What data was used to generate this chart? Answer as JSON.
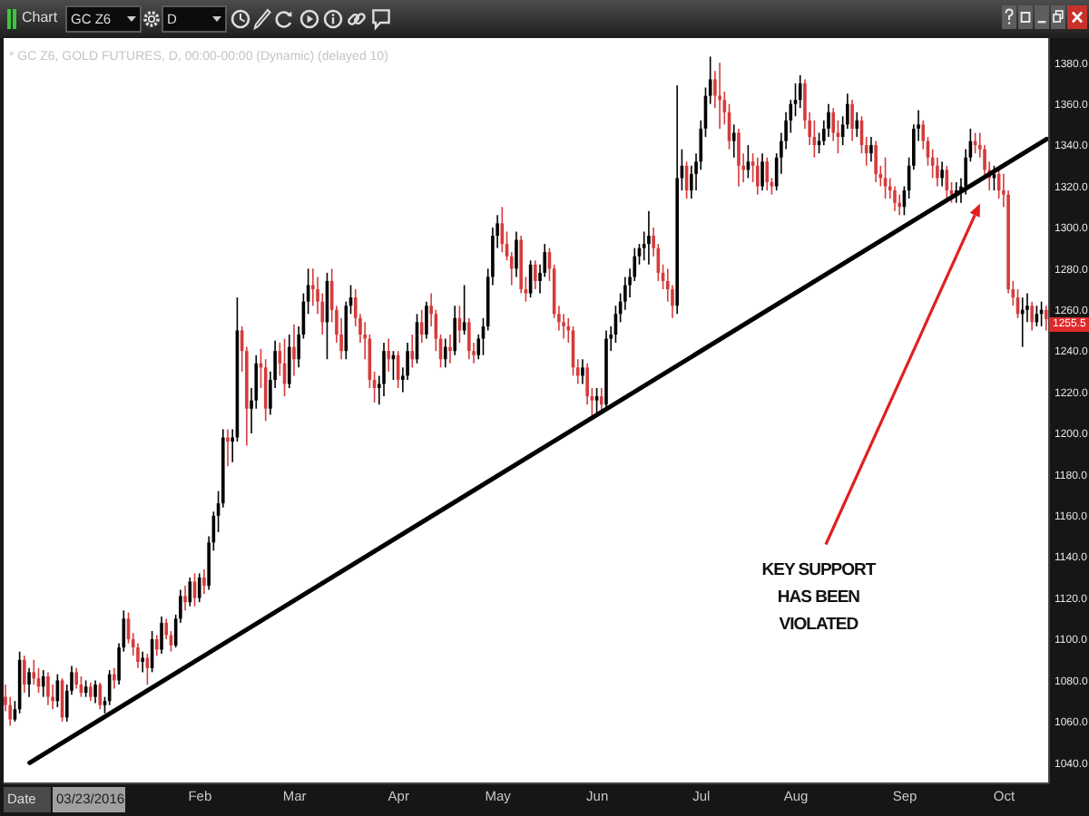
{
  "chart_data": {
    "type": "candlestick",
    "title": "* GC Z6, GOLD FUTURES, D, 00:00-00:00 (Dynamic) (delayed 10)",
    "categories": [
      null,
      null,
      null,
      null,
      null,
      null,
      null,
      null,
      null,
      null,
      null,
      null,
      null,
      null,
      null,
      null,
      null,
      null,
      null,
      null,
      null,
      null,
      null,
      null,
      null,
      null,
      null,
      null,
      null,
      null,
      null,
      null,
      null,
      null,
      null,
      null,
      null,
      null,
      null,
      null,
      null,
      "Feb",
      null,
      null,
      null,
      null,
      null,
      null,
      null,
      null,
      null,
      null,
      null,
      null,
      null,
      null,
      null,
      null,
      null,
      null,
      null,
      "Mar",
      null,
      null,
      null,
      null,
      null,
      null,
      null,
      null,
      null,
      null,
      null,
      null,
      null,
      null,
      null,
      null,
      null,
      null,
      null,
      null,
      null,
      "Apr",
      null,
      null,
      null,
      null,
      null,
      null,
      null,
      null,
      null,
      null,
      null,
      null,
      null,
      null,
      null,
      null,
      null,
      null,
      null,
      null,
      "May",
      null,
      null,
      null,
      null,
      null,
      null,
      null,
      null,
      null,
      null,
      null,
      null,
      null,
      null,
      null,
      null,
      null,
      null,
      null,
      null,
      "Jun",
      null,
      null,
      null,
      null,
      null,
      null,
      null,
      null,
      null,
      null,
      null,
      null,
      null,
      null,
      null,
      null,
      null,
      null,
      null,
      null,
      null,
      "Jul",
      null,
      null,
      null,
      null,
      null,
      null,
      null,
      null,
      null,
      null,
      null,
      null,
      null,
      null,
      null,
      null,
      null,
      null,
      null,
      "Aug",
      null,
      null,
      null,
      null,
      null,
      null,
      null,
      null,
      null,
      null,
      null,
      null,
      null,
      null,
      null,
      null,
      null,
      null,
      null,
      null,
      null,
      null,
      "Sep",
      null,
      null,
      null,
      null,
      null,
      null,
      null,
      null,
      null,
      null,
      null,
      null,
      null,
      null,
      null,
      null,
      null,
      null,
      null,
      null,
      "Oct",
      null,
      null,
      null,
      null,
      null,
      null,
      null,
      null,
      null
    ],
    "ohlc": [
      [
        1072,
        1078,
        1065,
        1068
      ],
      [
        1068,
        1072,
        1058,
        1061
      ],
      [
        1061,
        1070,
        1060,
        1066
      ],
      [
        1066,
        1094,
        1064,
        1090
      ],
      [
        1090,
        1092,
        1074,
        1078
      ],
      [
        1078,
        1086,
        1072,
        1084
      ],
      [
        1084,
        1090,
        1078,
        1081
      ],
      [
        1081,
        1086,
        1074,
        1077
      ],
      [
        1077,
        1085,
        1072,
        1082
      ],
      [
        1082,
        1084,
        1068,
        1072
      ],
      [
        1072,
        1078,
        1066,
        1070
      ],
      [
        1070,
        1083,
        1067,
        1080
      ],
      [
        1080,
        1081,
        1060,
        1062
      ],
      [
        1062,
        1078,
        1060,
        1075
      ],
      [
        1075,
        1087,
        1073,
        1084
      ],
      [
        1084,
        1086,
        1076,
        1078
      ],
      [
        1078,
        1082,
        1072,
        1074
      ],
      [
        1074,
        1080,
        1072,
        1077
      ],
      [
        1077,
        1079,
        1070,
        1072
      ],
      [
        1072,
        1080,
        1069,
        1078
      ],
      [
        1078,
        1079,
        1066,
        1068
      ],
      [
        1068,
        1072,
        1064,
        1070
      ],
      [
        1070,
        1085,
        1068,
        1083
      ],
      [
        1083,
        1086,
        1076,
        1080
      ],
      [
        1080,
        1098,
        1078,
        1096
      ],
      [
        1096,
        1114,
        1094,
        1110
      ],
      [
        1110,
        1113,
        1098,
        1100
      ],
      [
        1100,
        1103,
        1092,
        1096
      ],
      [
        1096,
        1098,
        1086,
        1089
      ],
      [
        1089,
        1094,
        1084,
        1091
      ],
      [
        1091,
        1093,
        1078,
        1086
      ],
      [
        1086,
        1104,
        1084,
        1100
      ],
      [
        1100,
        1102,
        1092,
        1095
      ],
      [
        1095,
        1111,
        1093,
        1108
      ],
      [
        1108,
        1110,
        1100,
        1102
      ],
      [
        1102,
        1104,
        1094,
        1097
      ],
      [
        1097,
        1112,
        1096,
        1110
      ],
      [
        1110,
        1124,
        1108,
        1121
      ],
      [
        1121,
        1126,
        1114,
        1118
      ],
      [
        1118,
        1130,
        1116,
        1128
      ],
      [
        1128,
        1132,
        1116,
        1120
      ],
      [
        1120,
        1132,
        1118,
        1130
      ],
      [
        1130,
        1134,
        1122,
        1126
      ],
      [
        1126,
        1150,
        1124,
        1147
      ],
      [
        1147,
        1162,
        1143,
        1160
      ],
      [
        1160,
        1172,
        1152,
        1166
      ],
      [
        1166,
        1202,
        1164,
        1198
      ],
      [
        1198,
        1202,
        1184,
        1196
      ],
      [
        1196,
        1202,
        1186,
        1198
      ],
      [
        1198,
        1266,
        1196,
        1250
      ],
      [
        1250,
        1252,
        1230,
        1240
      ],
      [
        1240,
        1242,
        1194,
        1212
      ],
      [
        1212,
        1222,
        1200,
        1216
      ],
      [
        1216,
        1238,
        1212,
        1234
      ],
      [
        1234,
        1241,
        1222,
        1232
      ],
      [
        1232,
        1236,
        1206,
        1212
      ],
      [
        1212,
        1230,
        1209,
        1226
      ],
      [
        1226,
        1245,
        1222,
        1240
      ],
      [
        1240,
        1244,
        1228,
        1234
      ],
      [
        1234,
        1246,
        1218,
        1224
      ],
      [
        1224,
        1248,
        1222,
        1242
      ],
      [
        1242,
        1253,
        1228,
        1236
      ],
      [
        1236,
        1252,
        1232,
        1248
      ],
      [
        1248,
        1268,
        1246,
        1264
      ],
      [
        1264,
        1280,
        1258,
        1272
      ],
      [
        1272,
        1280,
        1262,
        1270
      ],
      [
        1270,
        1276,
        1258,
        1264
      ],
      [
        1264,
        1268,
        1248,
        1254
      ],
      [
        1254,
        1278,
        1236,
        1274
      ],
      [
        1274,
        1280,
        1254,
        1260
      ],
      [
        1260,
        1262,
        1244,
        1248
      ],
      [
        1248,
        1256,
        1236,
        1240
      ],
      [
        1240,
        1264,
        1236,
        1262
      ],
      [
        1262,
        1272,
        1258,
        1266
      ],
      [
        1266,
        1270,
        1252,
        1256
      ],
      [
        1256,
        1258,
        1244,
        1248
      ],
      [
        1248,
        1254,
        1236,
        1246
      ],
      [
        1246,
        1248,
        1222,
        1226
      ],
      [
        1226,
        1230,
        1215,
        1222
      ],
      [
        1222,
        1228,
        1214,
        1224
      ],
      [
        1224,
        1244,
        1218,
        1240
      ],
      [
        1240,
        1246,
        1230,
        1236
      ],
      [
        1236,
        1240,
        1226,
        1238
      ],
      [
        1238,
        1240,
        1222,
        1226
      ],
      [
        1226,
        1232,
        1220,
        1228
      ],
      [
        1228,
        1244,
        1226,
        1240
      ],
      [
        1240,
        1248,
        1232,
        1236
      ],
      [
        1236,
        1258,
        1234,
        1254
      ],
      [
        1254,
        1260,
        1244,
        1248
      ],
      [
        1248,
        1264,
        1246,
        1262
      ],
      [
        1262,
        1268,
        1252,
        1258
      ],
      [
        1258,
        1260,
        1240,
        1246
      ],
      [
        1246,
        1248,
        1232,
        1236
      ],
      [
        1236,
        1246,
        1232,
        1242
      ],
      [
        1242,
        1248,
        1234,
        1240
      ],
      [
        1240,
        1262,
        1238,
        1256
      ],
      [
        1256,
        1262,
        1244,
        1250
      ],
      [
        1250,
        1272,
        1248,
        1254
      ],
      [
        1254,
        1256,
        1236,
        1240
      ],
      [
        1240,
        1244,
        1234,
        1238
      ],
      [
        1238,
        1248,
        1236,
        1246
      ],
      [
        1246,
        1256,
        1238,
        1252
      ],
      [
        1252,
        1280,
        1250,
        1276
      ],
      [
        1276,
        1300,
        1272,
        1296
      ],
      [
        1296,
        1306,
        1290,
        1302
      ],
      [
        1302,
        1310,
        1288,
        1292
      ],
      [
        1292,
        1298,
        1284,
        1286
      ],
      [
        1286,
        1288,
        1272,
        1280
      ],
      [
        1280,
        1298,
        1276,
        1294
      ],
      [
        1294,
        1296,
        1268,
        1270
      ],
      [
        1270,
        1276,
        1264,
        1268
      ],
      [
        1268,
        1284,
        1266,
        1282
      ],
      [
        1282,
        1284,
        1270,
        1274
      ],
      [
        1274,
        1282,
        1268,
        1278
      ],
      [
        1278,
        1292,
        1276,
        1288
      ],
      [
        1288,
        1290,
        1274,
        1280
      ],
      [
        1280,
        1282,
        1256,
        1258
      ],
      [
        1258,
        1262,
        1250,
        1254
      ],
      [
        1254,
        1258,
        1246,
        1252
      ],
      [
        1252,
        1256,
        1244,
        1250
      ],
      [
        1250,
        1252,
        1228,
        1232
      ],
      [
        1232,
        1236,
        1224,
        1228
      ],
      [
        1228,
        1236,
        1224,
        1232
      ],
      [
        1232,
        1234,
        1214,
        1218
      ],
      [
        1218,
        1222,
        1208,
        1216
      ],
      [
        1216,
        1222,
        1210,
        1218
      ],
      [
        1218,
        1222,
        1210,
        1214
      ],
      [
        1214,
        1250,
        1212,
        1246
      ],
      [
        1246,
        1252,
        1240,
        1248
      ],
      [
        1248,
        1262,
        1244,
        1258
      ],
      [
        1258,
        1268,
        1254,
        1264
      ],
      [
        1264,
        1276,
        1260,
        1272
      ],
      [
        1272,
        1280,
        1266,
        1276
      ],
      [
        1276,
        1290,
        1274,
        1286
      ],
      [
        1286,
        1292,
        1282,
        1290
      ],
      [
        1290,
        1298,
        1284,
        1292
      ],
      [
        1292,
        1308,
        1282,
        1296
      ],
      [
        1296,
        1300,
        1286,
        1290
      ],
      [
        1290,
        1292,
        1274,
        1278
      ],
      [
        1278,
        1282,
        1270,
        1274
      ],
      [
        1274,
        1280,
        1264,
        1270
      ],
      [
        1270,
        1272,
        1256,
        1262
      ],
      [
        1262,
        1369,
        1258,
        1324
      ],
      [
        1324,
        1338,
        1318,
        1330
      ],
      [
        1330,
        1332,
        1314,
        1318
      ],
      [
        1318,
        1330,
        1314,
        1326
      ],
      [
        1326,
        1336,
        1318,
        1332
      ],
      [
        1332,
        1352,
        1328,
        1348
      ],
      [
        1348,
        1368,
        1344,
        1364
      ],
      [
        1364,
        1383,
        1360,
        1372
      ],
      [
        1372,
        1376,
        1358,
        1364
      ],
      [
        1364,
        1380,
        1348,
        1362
      ],
      [
        1362,
        1366,
        1350,
        1356
      ],
      [
        1356,
        1360,
        1338,
        1342
      ],
      [
        1342,
        1350,
        1334,
        1346
      ],
      [
        1346,
        1348,
        1320,
        1330
      ],
      [
        1330,
        1336,
        1322,
        1328
      ],
      [
        1328,
        1340,
        1324,
        1332
      ],
      [
        1332,
        1336,
        1322,
        1330
      ],
      [
        1330,
        1334,
        1316,
        1320
      ],
      [
        1320,
        1336,
        1318,
        1332
      ],
      [
        1332,
        1334,
        1318,
        1322
      ],
      [
        1322,
        1324,
        1316,
        1320
      ],
      [
        1320,
        1336,
        1318,
        1334
      ],
      [
        1334,
        1346,
        1326,
        1342
      ],
      [
        1342,
        1356,
        1338,
        1352
      ],
      [
        1352,
        1362,
        1346,
        1360
      ],
      [
        1360,
        1370,
        1354,
        1362
      ],
      [
        1362,
        1374,
        1358,
        1370
      ],
      [
        1370,
        1372,
        1348,
        1352
      ],
      [
        1352,
        1356,
        1340,
        1344
      ],
      [
        1344,
        1352,
        1334,
        1340
      ],
      [
        1340,
        1346,
        1336,
        1342
      ],
      [
        1342,
        1352,
        1340,
        1348
      ],
      [
        1348,
        1360,
        1344,
        1356
      ],
      [
        1356,
        1358,
        1342,
        1346
      ],
      [
        1346,
        1352,
        1336,
        1344
      ],
      [
        1344,
        1354,
        1340,
        1350
      ],
      [
        1350,
        1365,
        1348,
        1360
      ],
      [
        1360,
        1362,
        1342,
        1348
      ],
      [
        1348,
        1356,
        1344,
        1352
      ],
      [
        1352,
        1354,
        1336,
        1340
      ],
      [
        1340,
        1344,
        1330,
        1336
      ],
      [
        1336,
        1344,
        1332,
        1340
      ],
      [
        1340,
        1342,
        1322,
        1326
      ],
      [
        1326,
        1330,
        1320,
        1324
      ],
      [
        1324,
        1334,
        1314,
        1320
      ],
      [
        1320,
        1324,
        1314,
        1318
      ],
      [
        1318,
        1320,
        1308,
        1312
      ],
      [
        1312,
        1316,
        1306,
        1310
      ],
      [
        1310,
        1320,
        1306,
        1318
      ],
      [
        1318,
        1334,
        1314,
        1330
      ],
      [
        1330,
        1350,
        1328,
        1348
      ],
      [
        1348,
        1357,
        1342,
        1350
      ],
      [
        1350,
        1352,
        1338,
        1342
      ],
      [
        1342,
        1344,
        1330,
        1334
      ],
      [
        1334,
        1338,
        1324,
        1330
      ],
      [
        1330,
        1334,
        1320,
        1324
      ],
      [
        1324,
        1332,
        1320,
        1328
      ],
      [
        1328,
        1330,
        1314,
        1318
      ],
      [
        1318,
        1322,
        1312,
        1316
      ],
      [
        1316,
        1322,
        1312,
        1318
      ],
      [
        1318,
        1324,
        1312,
        1320
      ],
      [
        1320,
        1338,
        1316,
        1334
      ],
      [
        1334,
        1348,
        1332,
        1342
      ],
      [
        1342,
        1346,
        1336,
        1340
      ],
      [
        1340,
        1346,
        1334,
        1338
      ],
      [
        1338,
        1340,
        1324,
        1328
      ],
      [
        1328,
        1332,
        1318,
        1324
      ],
      [
        1324,
        1330,
        1318,
        1326
      ],
      [
        1326,
        1328,
        1314,
        1318
      ],
      [
        1318,
        1326,
        1310,
        1316
      ],
      [
        1316,
        1318,
        1268,
        1270
      ],
      [
        1270,
        1274,
        1262,
        1266
      ],
      [
        1266,
        1270,
        1256,
        1258
      ],
      [
        1258,
        1266,
        1242,
        1260
      ],
      [
        1260,
        1268,
        1254,
        1262
      ],
      [
        1262,
        1264,
        1250,
        1254
      ],
      [
        1254,
        1262,
        1252,
        1258
      ],
      [
        1258,
        1264,
        1252,
        1260
      ],
      [
        1260,
        1262,
        1250,
        1255.5
      ]
    ],
    "colors": [
      "#d63b3b",
      "#d63b3b",
      "#000000",
      "#000000",
      "#d63b3b",
      "#000000",
      "#d63b3b",
      "#d63b3b",
      "#000000",
      "#d63b3b",
      "#d63b3b",
      "#000000",
      "#d63b3b",
      "#000000",
      "#000000",
      "#d63b3b",
      "#d63b3b",
      "#000000",
      "#d63b3b",
      "#000000",
      "#d63b3b",
      "#000000",
      "#000000",
      "#d63b3b",
      "#000000",
      "#000000",
      "#d63b3b",
      "#d63b3b",
      "#d63b3b",
      "#000000",
      "#d63b3b",
      "#000000",
      "#d63b3b",
      "#000000",
      "#d63b3b",
      "#d63b3b",
      "#000000",
      "#000000",
      "#d63b3b",
      "#000000",
      "#d63b3b",
      "#000000",
      "#d63b3b",
      "#000000",
      "#000000",
      "#000000",
      "#000000",
      "#d63b3b",
      "#000000",
      "#000000",
      "#d63b3b",
      "#d63b3b",
      "#000000",
      "#000000",
      "#d63b3b",
      "#d63b3b",
      "#000000",
      "#000000",
      "#d63b3b",
      "#d63b3b",
      "#000000",
      "#d63b3b",
      "#000000",
      "#000000",
      "#000000",
      "#d63b3b",
      "#d63b3b",
      "#d63b3b",
      "#000000",
      "#d63b3b",
      "#d63b3b",
      "#d63b3b",
      "#000000",
      "#000000",
      "#d63b3b",
      "#d63b3b",
      "#d63b3b",
      "#d63b3b",
      "#d63b3b",
      "#000000",
      "#000000",
      "#d63b3b",
      "#000000",
      "#d63b3b",
      "#000000",
      "#000000",
      "#d63b3b",
      "#000000",
      "#d63b3b",
      "#000000",
      "#d63b3b",
      "#d63b3b",
      "#d63b3b",
      "#000000",
      "#d63b3b",
      "#000000",
      "#d63b3b",
      "#000000",
      "#d63b3b",
      "#d63b3b",
      "#000000",
      "#000000",
      "#000000",
      "#000000",
      "#000000",
      "#d63b3b",
      "#d63b3b",
      "#d63b3b",
      "#000000",
      "#d63b3b",
      "#d63b3b",
      "#000000",
      "#d63b3b",
      "#000000",
      "#000000",
      "#d63b3b",
      "#d63b3b",
      "#d63b3b",
      "#d63b3b",
      "#d63b3b",
      "#d63b3b",
      "#d63b3b",
      "#000000",
      "#d63b3b",
      "#d63b3b",
      "#000000",
      "#d63b3b",
      "#000000",
      "#000000",
      "#000000",
      "#000000",
      "#000000",
      "#000000",
      "#000000",
      "#000000",
      "#000000",
      "#000000",
      "#d63b3b",
      "#d63b3b",
      "#d63b3b",
      "#d63b3b",
      "#d63b3b",
      "#000000",
      "#000000",
      "#d63b3b",
      "#000000",
      "#000000",
      "#000000",
      "#000000",
      "#000000",
      "#d63b3b",
      "#d63b3b",
      "#d63b3b",
      "#d63b3b",
      "#000000",
      "#d63b3b",
      "#d63b3b",
      "#000000",
      "#d63b3b",
      "#d63b3b",
      "#000000",
      "#d63b3b",
      "#d63b3b",
      "#000000",
      "#000000",
      "#000000",
      "#000000",
      "#000000",
      "#000000",
      "#d63b3b",
      "#d63b3b",
      "#d63b3b",
      "#000000",
      "#000000",
      "#000000",
      "#d63b3b",
      "#d63b3b",
      "#000000",
      "#000000",
      "#d63b3b",
      "#000000",
      "#d63b3b",
      "#d63b3b",
      "#000000",
      "#d63b3b",
      "#d63b3b",
      "#d63b3b",
      "#d63b3b",
      "#d63b3b",
      "#d63b3b",
      "#000000",
      "#000000",
      "#000000",
      "#000000",
      "#d63b3b",
      "#d63b3b",
      "#d63b3b",
      "#d63b3b",
      "#000000",
      "#d63b3b",
      "#d63b3b",
      "#000000",
      "#000000",
      "#000000",
      "#000000",
      "#d63b3b",
      "#d63b3b",
      "#d63b3b",
      "#d63b3b",
      "#000000",
      "#d63b3b",
      "#d63b3b",
      "#d63b3b",
      "#d63b3b",
      "#d63b3b",
      "#000000",
      "#000000",
      "#d63b3b",
      "#000000",
      "#000000",
      "#d63b3b"
    ],
    "series": [
      {
        "type": "line",
        "color": "#000000",
        "values": [
          null,
          null,
          null,
          null,
          null,
          1040,
          null,
          null,
          null,
          null,
          null,
          null,
          null,
          null,
          null,
          null,
          null,
          null,
          null,
          null,
          null,
          null,
          null,
          null,
          null,
          null,
          null,
          null,
          null,
          null,
          null,
          null,
          null,
          null,
          null,
          null,
          null,
          null,
          null,
          null,
          null,
          null,
          null,
          null,
          null,
          null,
          null,
          null,
          null,
          null,
          null,
          null,
          null,
          null,
          null,
          null,
          null,
          null,
          null,
          null,
          null,
          null,
          null,
          null,
          null,
          null,
          null,
          null,
          null,
          null,
          null,
          null,
          null,
          null,
          null,
          null,
          null,
          null,
          null,
          null,
          null,
          null,
          null,
          null,
          null,
          null,
          null,
          null,
          null,
          null,
          null,
          null,
          null,
          null,
          null,
          null,
          null,
          null,
          null,
          null,
          null,
          null,
          null,
          null,
          null,
          null,
          null,
          null,
          null,
          null,
          null,
          null,
          null,
          null,
          null,
          null,
          null,
          null,
          null,
          null,
          null,
          null,
          null,
          null,
          null,
          null,
          null,
          null,
          null,
          null,
          null,
          null,
          null,
          null,
          null,
          null,
          null,
          null,
          null,
          null,
          null,
          null,
          null,
          null,
          null,
          null,
          null,
          null,
          null,
          null,
          null,
          null,
          null,
          null,
          null,
          null,
          null,
          null,
          null,
          null,
          null,
          null,
          null,
          null,
          null,
          null,
          null,
          null,
          null,
          null,
          null,
          null,
          null,
          null,
          null,
          null,
          null,
          null,
          null,
          null,
          null,
          null,
          null,
          null,
          null,
          null,
          null,
          null,
          null,
          null,
          null,
          null,
          null,
          null,
          null,
          null,
          null,
          null,
          null,
          null,
          null,
          null,
          null,
          null,
          null,
          null,
          null,
          null,
          null,
          null,
          null,
          null,
          null,
          null,
          null,
          null,
          null,
          null,
          null,
          null,
          1343
        ]
      }
    ],
    "ylim": [
      1030,
      1392
    ],
    "yticks": [
      {
        "value": 1040,
        "label": "1040.0"
      },
      {
        "value": 1060,
        "label": "1060.0"
      },
      {
        "value": 1080,
        "label": "1080.0"
      },
      {
        "value": 1100,
        "label": "1100.0"
      },
      {
        "value": 1120,
        "label": "1120.0"
      },
      {
        "value": 1140,
        "label": "1140.0"
      },
      {
        "value": 1160,
        "label": "1160.0"
      },
      {
        "value": 1180,
        "label": "1180.0"
      },
      {
        "value": 1200,
        "label": "1200.0"
      },
      {
        "value": 1220,
        "label": "1220.0"
      },
      {
        "value": 1240,
        "label": "1240.0"
      },
      {
        "value": 1260,
        "label": "1260.0"
      },
      {
        "value": 1280,
        "label": "1280.0"
      },
      {
        "value": 1300,
        "label": "1300.0"
      },
      {
        "value": 1320,
        "label": "1320.0"
      },
      {
        "value": 1340,
        "label": "1340.0"
      },
      {
        "value": 1360,
        "label": "1360.0"
      },
      {
        "value": 1380,
        "label": "1380.0"
      }
    ],
    "annotations": [
      "Chart",
      "GC Z6",
      "D",
      "Date",
      "03/23/2016",
      "1255.5",
      "KEY SUPPORT HAS BEEN VIOLATED"
    ]
  }
}
